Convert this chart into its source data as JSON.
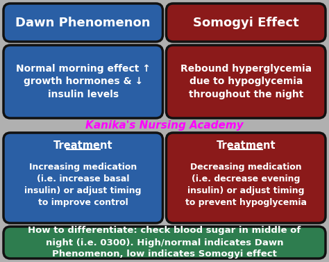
{
  "background_color": "#1a1a2e",
  "bg_gray": "#b0b0b0",
  "blue_color": "#2a5fa5",
  "red_color": "#8b1a1a",
  "green_color": "#2e7d4f",
  "white_color": "#ffffff",
  "pink_color": "#ff00ff",
  "title_left": "Dawn Phenomenon",
  "title_right": "Somogyi Effect",
  "desc_left": "Normal morning effect ↑\ngrowth hormones & ↓\ninsulin levels",
  "desc_right": "Rebound hyperglycemia\ndue to hypoglycemia\nthroughout the night",
  "treatment_left_header": "Treatment",
  "treatment_left_body": "Increasing medication\n(i.e. increase basal\ninsulin) or adjust timing\nto improve control",
  "treatment_right_header": "Treatment",
  "treatment_right_body": "Decreasing medication\n(i.e. decrease evening\ninsulin) or adjust timing\nto prevent hypoglycemia",
  "watermark": "Kanika's Nursing Academy",
  "bottom_text": "How to differentiate: check blood sugar in middle of\nnight (i.e. 0300). High/normal indicates Dawn\nPhenomenon, low indicates Somogyi effect"
}
